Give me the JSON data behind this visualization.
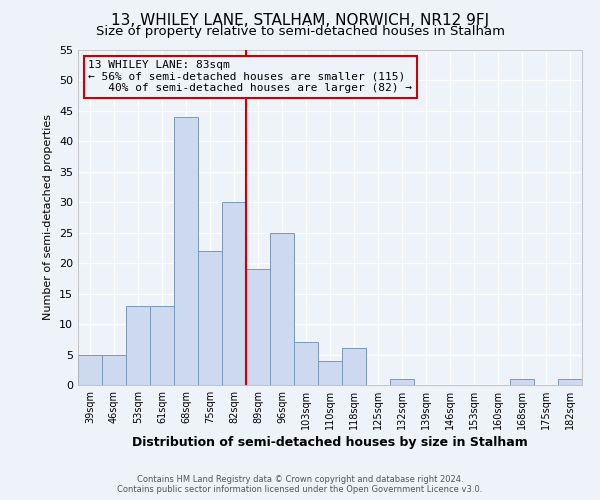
{
  "title": "13, WHILEY LANE, STALHAM, NORWICH, NR12 9FJ",
  "subtitle": "Size of property relative to semi-detached houses in Stalham",
  "xlabel": "Distribution of semi-detached houses by size in Stalham",
  "ylabel": "Number of semi-detached properties",
  "categories": [
    "39sqm",
    "46sqm",
    "53sqm",
    "61sqm",
    "68sqm",
    "75sqm",
    "82sqm",
    "89sqm",
    "96sqm",
    "103sqm",
    "110sqm",
    "118sqm",
    "125sqm",
    "132sqm",
    "139sqm",
    "146sqm",
    "153sqm",
    "160sqm",
    "168sqm",
    "175sqm",
    "182sqm"
  ],
  "values": [
    5,
    5,
    13,
    13,
    44,
    22,
    30,
    19,
    25,
    7,
    4,
    6,
    0,
    1,
    0,
    0,
    0,
    0,
    1,
    0,
    1
  ],
  "bar_color": "#ccd9ee",
  "bar_edge_color": "#7799bb",
  "vline_color": "#cc0000",
  "annotation_title": "13 WHILEY LANE: 83sqm",
  "annotation_line1": "← 56% of semi-detached houses are smaller (115)",
  "annotation_line2": "   40% of semi-detached houses are larger (82) →",
  "annotation_box_edge_color": "#cc0000",
  "ylim": [
    0,
    55
  ],
  "yticks": [
    0,
    5,
    10,
    15,
    20,
    25,
    30,
    35,
    40,
    45,
    50,
    55
  ],
  "footer_line1": "Contains HM Land Registry data © Crown copyright and database right 2024.",
  "footer_line2": "Contains public sector information licensed under the Open Government Licence v3.0.",
  "background_color": "#eef2f9",
  "grid_color": "#ffffff",
  "title_fontsize": 11,
  "subtitle_fontsize": 9.5
}
